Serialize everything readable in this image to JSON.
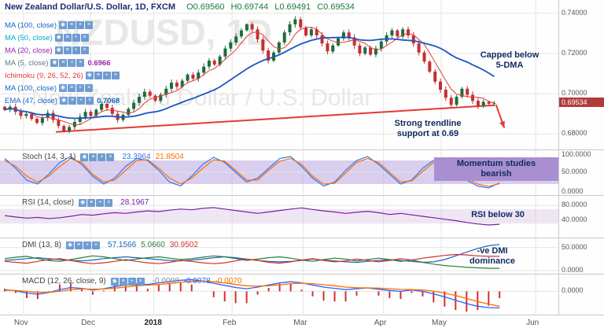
{
  "header": {
    "title": "New Zealand Dollar/U.S. Dollar, 1D, FXCM",
    "ohlc": [
      {
        "k": "O",
        "v": "0.69560"
      },
      {
        "k": "H",
        "v": "0.69744"
      },
      {
        "k": "L",
        "v": "0.69491"
      },
      {
        "k": "C",
        "v": "0.69534"
      }
    ]
  },
  "icons": [
    {
      "name": "eye-icon",
      "glyph": "◉"
    },
    {
      "name": "settings-icon",
      "glyph": "≡"
    },
    {
      "name": "add-icon",
      "glyph": "+"
    },
    {
      "name": "close-icon",
      "glyph": "×"
    }
  ],
  "legend": {
    "rows": [
      {
        "label": "MA (100, close)",
        "color": "#1565c0",
        "value": "",
        "value_color": ""
      },
      {
        "label": "MA (50, close)",
        "color": "#00acc1",
        "value": "",
        "value_color": ""
      },
      {
        "label": "MA (20, close)",
        "color": "#9c27b0",
        "value": "",
        "value_color": ""
      },
      {
        "label": "MA (5, close)",
        "color": "#607d8b",
        "value": "0.6966",
        "value_color": "#9c27b0"
      },
      {
        "label": "Ichimoku (9, 26, 52, 26)",
        "color": "#e53935",
        "value": "",
        "value_color": ""
      },
      {
        "label": "MA (100, close)",
        "color": "#1565c0",
        "value": "",
        "value_color": ""
      },
      {
        "label": "EMA (47, close)",
        "color": "#1565c0",
        "value": "0.7068",
        "value_color": "#1565c0"
      }
    ]
  },
  "annotations": {
    "capped_line1": "Capped below",
    "capped_line2": "5-DMA",
    "support_line1": "Strong trendline",
    "support_line2": "support at 0.69",
    "momentum_line1": "Momentum studies",
    "momentum_line2": "bearish",
    "rsi_note": "RSI below 30",
    "dmi_line1": "-ve DMI",
    "dmi_line2": "dominance"
  },
  "time_axis": {
    "labels": [
      {
        "text": "Nov",
        "x": 0.042,
        "bold": false
      },
      {
        "text": "Dec",
        "x": 0.162,
        "bold": false
      },
      {
        "text": "2018",
        "x": 0.275,
        "bold": true
      },
      {
        "text": "Feb",
        "x": 0.415,
        "bold": false
      },
      {
        "text": "Mar",
        "x": 0.542,
        "bold": false
      },
      {
        "text": "Apr",
        "x": 0.686,
        "bold": false
      },
      {
        "text": "May",
        "x": 0.789,
        "bold": false
      },
      {
        "text": "Jun",
        "x": 0.958,
        "bold": false
      }
    ]
  },
  "chart_data": [
    {
      "type": "candlestick",
      "title": "NZDUSD, 1D",
      "watermark_line1": "NZDUSD, 1D",
      "watermark_line2": "New Zealand Dollar / U.S. Dollar",
      "ymin": 0.6727,
      "ymax": 0.7466,
      "grid": [
        0.74,
        0.72,
        0.7,
        0.68
      ],
      "axis_labels": [
        "0.74000",
        "0.72000",
        "0.70000",
        "0.68000"
      ],
      "closes": [
        0.692,
        0.6935,
        0.691,
        0.689,
        0.69,
        0.6875,
        0.6855,
        0.688,
        0.6905,
        0.687,
        0.684,
        0.6815,
        0.6835,
        0.686,
        0.6885,
        0.691,
        0.689,
        0.692,
        0.695,
        0.693,
        0.69,
        0.687,
        0.6895,
        0.6925,
        0.6955,
        0.6985,
        0.701,
        0.699,
        0.6965,
        0.6995,
        0.7025,
        0.7055,
        0.7035,
        0.7065,
        0.7095,
        0.7075,
        0.7105,
        0.7135,
        0.7165,
        0.7145,
        0.7185,
        0.7225,
        0.7255,
        0.7285,
        0.7315,
        0.7345,
        0.732,
        0.727,
        0.7215,
        0.7165,
        0.7205,
        0.7255,
        0.7305,
        0.7345,
        0.737,
        0.733,
        0.729,
        0.732,
        0.729,
        0.725,
        0.721,
        0.724,
        0.7275,
        0.7305,
        0.728,
        0.724,
        0.72,
        0.723,
        0.7195,
        0.7225,
        0.726,
        0.729,
        0.7315,
        0.7285,
        0.732,
        0.729,
        0.725,
        0.7205,
        0.716,
        0.711,
        0.706,
        0.702,
        0.698,
        0.6945,
        0.6985,
        0.7025,
        0.6995,
        0.6965,
        0.694,
        0.696,
        0.695,
        0.69534
      ],
      "ma_fast_period": 5,
      "ma_slow_period": 20,
      "trendline": {
        "x1": 0.1,
        "p1": 0.681,
        "x2": 0.885,
        "p2": 0.6943
      },
      "arrow": {
        "x1": 0.887,
        "p1": 0.6945,
        "x2": 0.902,
        "p2": 0.683
      },
      "last_price": 0.69534,
      "last_price_label": "0.69534"
    },
    {
      "type": "line",
      "name": "Stoch (14, 3, 1)",
      "range": [
        0,
        100
      ],
      "band": [
        20,
        80
      ],
      "band_color": "#b39ddb",
      "band_opacity": 0.5,
      "grid": [
        50
      ],
      "axis": [
        {
          "v": 100,
          "label": "100.0000"
        },
        {
          "v": 50,
          "label": "50.0000"
        },
        {
          "v": 0,
          "label": "0.0000"
        }
      ],
      "series": [
        {
          "name": "%K",
          "color": "#2979ff",
          "values": [
            85,
            60,
            30,
            20,
            45,
            75,
            90,
            70,
            40,
            20,
            35,
            65,
            85,
            80,
            55,
            25,
            15,
            40,
            70,
            88,
            75,
            50,
            25,
            35,
            60,
            85,
            90,
            65,
            35,
            15,
            25,
            55,
            80,
            90,
            70,
            45,
            20,
            30,
            60,
            80,
            85,
            60,
            30,
            15,
            10,
            23
          ]
        },
        {
          "name": "%D",
          "color": "#ff6d00",
          "values": [
            80,
            65,
            40,
            25,
            40,
            65,
            85,
            75,
            45,
            25,
            30,
            55,
            80,
            82,
            60,
            35,
            20,
            35,
            60,
            82,
            78,
            55,
            30,
            30,
            55,
            78,
            85,
            70,
            40,
            20,
            22,
            48,
            75,
            85,
            75,
            50,
            25,
            28,
            52,
            75,
            82,
            65,
            35,
            20,
            14,
            21
          ]
        }
      ],
      "values_display": [
        {
          "text": "23.3964",
          "color": "#2979ff"
        },
        {
          "text": "21.8504",
          "color": "#ff6d00"
        }
      ]
    },
    {
      "type": "line",
      "name": "RSI (14, close)",
      "range": [
        0,
        100
      ],
      "band": [
        30,
        70
      ],
      "band_color": "#c9a8dc",
      "band_opacity": 0.28,
      "grid": [
        80,
        40
      ],
      "axis": [
        {
          "v": 80,
          "label": "80.0000"
        },
        {
          "v": 40,
          "label": "40.0000"
        }
      ],
      "series": [
        {
          "name": "RSI",
          "color": "#7b1fa2",
          "values": [
            52,
            48,
            45,
            47,
            44,
            46,
            50,
            55,
            53,
            57,
            60,
            58,
            62,
            65,
            63,
            67,
            70,
            68,
            72,
            74,
            70,
            66,
            62,
            58,
            62,
            66,
            70,
            73,
            69,
            65,
            62,
            58,
            61,
            64,
            60,
            55,
            58,
            54,
            50,
            46,
            42,
            38,
            33,
            29,
            26,
            28
          ]
        }
      ],
      "values_display": [
        {
          "text": "28.1967",
          "color": "#7b1fa2"
        }
      ]
    },
    {
      "type": "line",
      "name": "DMI (13, 8)",
      "range": [
        0,
        65
      ],
      "grid": [
        50,
        0
      ],
      "axis": [
        {
          "v": 50,
          "label": "50.0000"
        },
        {
          "v": 0,
          "label": "0.0000"
        }
      ],
      "series": [
        {
          "name": "ADX",
          "color": "#1565c0",
          "values": [
            22,
            24,
            26,
            28,
            26,
            24,
            22,
            21,
            23,
            26,
            28,
            30,
            28,
            26,
            24,
            22,
            21,
            23,
            25,
            28,
            30,
            28,
            25,
            22,
            20,
            19,
            20,
            22,
            25,
            23,
            21,
            19,
            18,
            20,
            22,
            24,
            22,
            20,
            18,
            19,
            24,
            32,
            40,
            48,
            54,
            57
          ]
        },
        {
          "name": "+DI",
          "color": "#2e7d32",
          "values": [
            26,
            29,
            31,
            26,
            22,
            20,
            24,
            28,
            32,
            30,
            26,
            22,
            25,
            28,
            30,
            27,
            24,
            26,
            29,
            32,
            30,
            26,
            22,
            25,
            28,
            30,
            27,
            23,
            20,
            24,
            27,
            25,
            21,
            24,
            27,
            24,
            20,
            23,
            18,
            14,
            11,
            9,
            7,
            6,
            5,
            5
          ]
        },
        {
          "name": "-DI",
          "color": "#d32f2f",
          "values": [
            20,
            18,
            16,
            20,
            24,
            26,
            22,
            18,
            15,
            17,
            20,
            24,
            20,
            17,
            15,
            18,
            22,
            20,
            17,
            15,
            17,
            21,
            25,
            22,
            18,
            16,
            19,
            23,
            26,
            22,
            19,
            21,
            25,
            22,
            19,
            22,
            26,
            23,
            27,
            30,
            33,
            35,
            34,
            32,
            31,
            31
          ]
        }
      ],
      "values_display": [
        {
          "text": "57.1566",
          "color": "#1565c0"
        },
        {
          "text": "5.0660",
          "color": "#2e7d32"
        },
        {
          "text": "30.9502",
          "color": "#d32f2f"
        }
      ]
    },
    {
      "type": "macd",
      "name": "MACD (12, 26, close, 9)",
      "range": [
        -0.0095,
        0.0068
      ],
      "grid": [
        0
      ],
      "axis": [
        {
          "v": 0,
          "label": "0.0000"
        }
      ],
      "macd": {
        "color": "#2962ff",
        "values": [
          0.0008,
          0.0002,
          -0.0008,
          -0.0014,
          -0.0006,
          0.0008,
          0.0018,
          0.0014,
          0.0006,
          0.0012,
          0.0022,
          0.003,
          0.0035,
          0.0032,
          0.004,
          0.0046,
          0.0052,
          0.0055,
          0.0048,
          0.0038,
          0.0028,
          0.0018,
          0.0012,
          0.002,
          0.003,
          0.004,
          0.0045,
          0.004,
          0.003,
          0.002,
          0.0014,
          0.0008,
          0.0012,
          0.0016,
          0.001,
          0.0004,
          0.0,
          0.0006,
          0.0,
          -0.0012,
          -0.0026,
          -0.0042,
          -0.0058,
          -0.007,
          -0.0077,
          -0.0078
        ]
      },
      "signal": {
        "color": "#ff6d00",
        "values": [
          0.0005,
          0.0004,
          0.0,
          -0.0005,
          -0.0005,
          0.0,
          0.0008,
          0.0011,
          0.001,
          0.0011,
          0.0015,
          0.002,
          0.0026,
          0.0029,
          0.0032,
          0.0037,
          0.0042,
          0.0047,
          0.0048,
          0.0045,
          0.004,
          0.0032,
          0.0026,
          0.0024,
          0.0026,
          0.0031,
          0.0036,
          0.0038,
          0.0036,
          0.0031,
          0.0026,
          0.002,
          0.0017,
          0.0016,
          0.0015,
          0.0012,
          0.0009,
          0.0008,
          0.0006,
          0.0001,
          -0.0008,
          -0.002,
          -0.0034,
          -0.0048,
          -0.006,
          -0.007
        ]
      },
      "hist_color": "#d32f2f",
      "values_display": [
        {
          "text": "-0.0008",
          "color": "#888888"
        },
        {
          "text": "-0.0078",
          "color": "#2962ff"
        },
        {
          "text": "-0.0070",
          "color": "#ff6d00"
        }
      ]
    }
  ],
  "colors": {
    "up": "#1d6b3f",
    "down": "#c62f2f",
    "trend": "#e53935",
    "ma_fast": "#e53935",
    "ma_slow": "#1a56c4",
    "grid": "#e4e4e4",
    "axis_text": "#555555",
    "annotation": "#0e2a5c",
    "momentum_bg": "#a98fd1"
  }
}
